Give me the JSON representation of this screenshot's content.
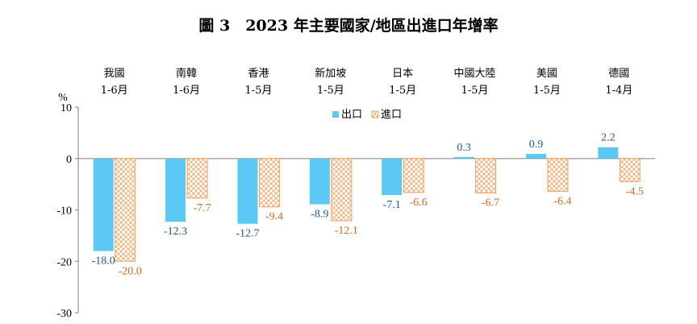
{
  "chart_data": {
    "type": "bar",
    "title": "圖 3　2023 年主要國家/地區出進口年增率",
    "ylabel": "%",
    "ylim": [
      -30,
      10
    ],
    "yticks": [
      10,
      0,
      -10,
      -20,
      -30
    ],
    "categories": [
      {
        "name": "我國",
        "period": "1-6月"
      },
      {
        "name": "南韓",
        "period": "1-6月"
      },
      {
        "name": "香港",
        "period": "1-5月"
      },
      {
        "name": "新加坡",
        "period": "1-5月"
      },
      {
        "name": "日本",
        "period": "1-5月"
      },
      {
        "name": "中國大陸",
        "period": "1-5月"
      },
      {
        "name": "美國",
        "period": "1-5月"
      },
      {
        "name": "德國",
        "period": "1-4月"
      }
    ],
    "series": [
      {
        "name": "出口",
        "color": "#5bc8f5",
        "label_color": "#1f5a8c",
        "values": [
          -18.0,
          -12.3,
          -12.7,
          -8.9,
          -7.1,
          0.3,
          0.9,
          2.2
        ]
      },
      {
        "name": "進口",
        "color": "#f5a25b",
        "label_color": "#d2691e",
        "pattern": "crosshatch",
        "values": [
          -20.0,
          -7.7,
          -9.4,
          -12.1,
          -6.6,
          -6.7,
          -6.4,
          -4.5
        ]
      }
    ],
    "legend_position": "top-center",
    "grid": false
  }
}
